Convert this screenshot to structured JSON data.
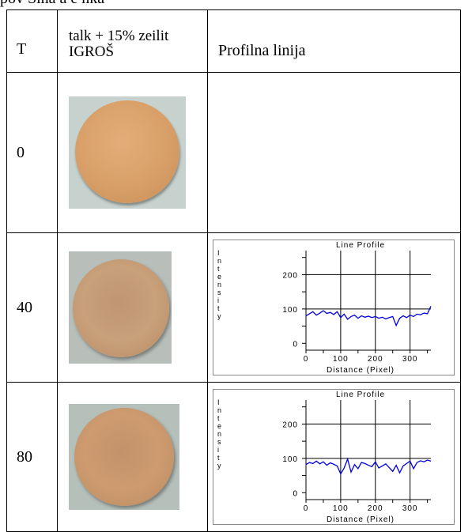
{
  "top_fragment": "pov Sina a e nka",
  "table": {
    "headers": {
      "t": "T",
      "sample_line1": "talk + 15% zeilit",
      "sample_line2": "IGROŠ",
      "profile": "Profilna linija"
    },
    "rows": [
      {
        "t": "0"
      },
      {
        "t": "40"
      },
      {
        "t": "80"
      }
    ]
  },
  "colors": {
    "disc_0": "#d9a26d",
    "disc_40": "#c59a72",
    "disc_80": "#c9976a",
    "background_sample": "#b5c0bd",
    "profile_line": "#0000dd"
  },
  "chart_data": [
    {
      "type": "line",
      "title": "Line Profile",
      "xlabel": "Distance (Pixel)",
      "ylabel": "Intensity",
      "xlim": [
        0,
        360
      ],
      "ylim": [
        -20,
        270
      ],
      "x_ticks": [
        0,
        100,
        200,
        300
      ],
      "y_ticks": [
        0,
        100,
        200
      ],
      "grid": true,
      "series": [
        {
          "x": [
            0,
            10,
            20,
            30,
            40,
            50,
            60,
            70,
            80,
            90,
            100,
            110,
            120,
            130,
            140,
            150,
            160,
            170,
            180,
            190,
            200,
            210,
            220,
            230,
            240,
            250,
            260,
            270,
            280,
            290,
            300,
            310,
            320,
            330,
            340,
            350,
            360
          ],
          "values": [
            80,
            86,
            92,
            82,
            88,
            95,
            87,
            90,
            84,
            92,
            75,
            85,
            70,
            78,
            82,
            73,
            80,
            76,
            79,
            75,
            78,
            73,
            76,
            71,
            75,
            78,
            52,
            73,
            80,
            75,
            82,
            78,
            85,
            83,
            88,
            86,
            108
          ]
        }
      ]
    },
    {
      "type": "line",
      "title": "Line Profile",
      "xlabel": "Distance (Pixel)",
      "ylabel": "Intensity",
      "xlim": [
        0,
        360
      ],
      "ylim": [
        -20,
        270
      ],
      "x_ticks": [
        0,
        100,
        200,
        300
      ],
      "y_ticks": [
        0,
        100,
        200
      ],
      "grid": true,
      "series": [
        {
          "x": [
            0,
            10,
            20,
            30,
            40,
            50,
            60,
            70,
            80,
            90,
            100,
            110,
            120,
            130,
            140,
            150,
            160,
            170,
            180,
            190,
            200,
            210,
            220,
            230,
            240,
            250,
            260,
            270,
            280,
            290,
            300,
            310,
            320,
            330,
            340,
            350,
            360
          ],
          "values": [
            82,
            88,
            85,
            92,
            84,
            90,
            80,
            87,
            83,
            78,
            55,
            72,
            98,
            60,
            82,
            70,
            88,
            85,
            80,
            76,
            90,
            72,
            78,
            84,
            73,
            62,
            80,
            58,
            78,
            85,
            92,
            70,
            88,
            93,
            90,
            95,
            92
          ]
        }
      ]
    }
  ]
}
